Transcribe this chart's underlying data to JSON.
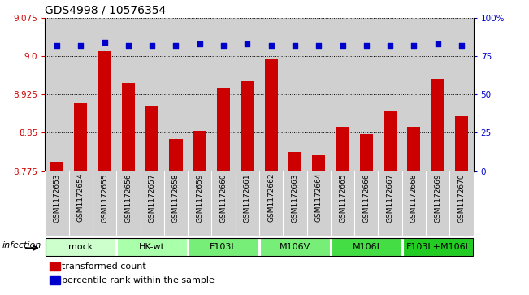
{
  "title": "GDS4998 / 10576354",
  "samples": [
    "GSM1172653",
    "GSM1172654",
    "GSM1172655",
    "GSM1172656",
    "GSM1172657",
    "GSM1172658",
    "GSM1172659",
    "GSM1172660",
    "GSM1172661",
    "GSM1172662",
    "GSM1172663",
    "GSM1172664",
    "GSM1172665",
    "GSM1172666",
    "GSM1172667",
    "GSM1172668",
    "GSM1172669",
    "GSM1172670"
  ],
  "bar_values": [
    8.794,
    8.907,
    9.01,
    8.947,
    8.903,
    8.838,
    8.854,
    8.938,
    8.95,
    8.993,
    8.813,
    8.806,
    8.862,
    8.848,
    8.892,
    8.861,
    8.955,
    8.883
  ],
  "dot_values": [
    82,
    82,
    84,
    82,
    82,
    82,
    83,
    82,
    83,
    82,
    82,
    82,
    82,
    82,
    82,
    82,
    83,
    82
  ],
  "bar_color": "#cc0000",
  "dot_color": "#0000cc",
  "ylim_left": [
    8.775,
    9.075
  ],
  "ylim_right": [
    0,
    100
  ],
  "yticks_left": [
    8.775,
    8.85,
    8.925,
    9.0,
    9.075
  ],
  "yticks_right": [
    0,
    25,
    50,
    75,
    100
  ],
  "group_definitions": [
    {
      "label": "mock",
      "start": 0,
      "end": 3,
      "color": "#ccffcc"
    },
    {
      "label": "HK-wt",
      "start": 3,
      "end": 6,
      "color": "#aaffaa"
    },
    {
      "label": "F103L",
      "start": 6,
      "end": 9,
      "color": "#77ee77"
    },
    {
      "label": "M106V",
      "start": 9,
      "end": 12,
      "color": "#77ee77"
    },
    {
      "label": "M106I",
      "start": 12,
      "end": 15,
      "color": "#44dd44"
    },
    {
      "label": "F103L+M106I",
      "start": 15,
      "end": 18,
      "color": "#22cc22"
    }
  ],
  "infection_label": "infection",
  "legend_bar_label": "transformed count",
  "legend_dot_label": "percentile rank within the sample",
  "bar_width": 0.55,
  "sample_bg_color": "#d0d0d0",
  "plot_bg_color": "#ffffff",
  "title_fontsize": 10,
  "axis_fontsize": 7.5,
  "group_fontsize": 8,
  "legend_fontsize": 8
}
